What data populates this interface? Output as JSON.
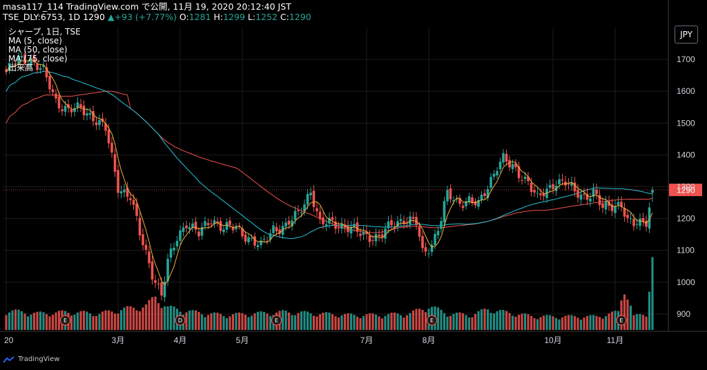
{
  "header": {
    "line1": "masa117_114 TradingView.com で公開, 11月 19, 2020 20:12:40 JST",
    "symbol": "TSE_DLY:6753, 1D",
    "last": "1290",
    "change": "+93 (+7.77%)",
    "o_label": "O:",
    "o": "1281",
    "h_label": "H:",
    "h": "1299",
    "l_label": "L:",
    "l": "1252",
    "c_label": "C:",
    "c": "1290"
  },
  "legend": {
    "title": "シャープ, 1日, TSE",
    "ma5": "MA (5, close)",
    "ma50": "MA (50, close)",
    "ma75": "MA (75, close)",
    "volume": "出来高"
  },
  "currency_button": "JPY",
  "footer": {
    "brand": "TradingView"
  },
  "colors": {
    "up": "#26a69a",
    "down": "#ef5350",
    "ma5": "#f2b33d",
    "ma50": "#26c6da",
    "ma75": "#ef5350",
    "grid": "#1c1c1c",
    "price_label_bg": "#ef5350"
  },
  "chart_data": {
    "type": "candlestick",
    "title": "シャープ, 1日, TSE",
    "ylim": [
      850,
      1800
    ],
    "y_ticks": [
      900,
      1000,
      1100,
      1200,
      1300,
      1400,
      1500,
      1600,
      1700
    ],
    "last_price": 1290,
    "x_labels": [
      "20",
      "3月",
      "4月",
      "5月",
      "7月",
      "8月",
      "10月",
      "11月"
    ],
    "x_label_positions_days": [
      0,
      36,
      56,
      76,
      116,
      136,
      176,
      196
    ],
    "grid": true,
    "legend_placement": "top-left",
    "close_anchors": [
      [
        0,
        1660
      ],
      [
        4,
        1700
      ],
      [
        8,
        1700
      ],
      [
        12,
        1660
      ],
      [
        16,
        1570
      ],
      [
        20,
        1540
      ],
      [
        24,
        1545
      ],
      [
        28,
        1520
      ],
      [
        32,
        1480
      ],
      [
        36,
        1300
      ],
      [
        40,
        1270
      ],
      [
        43,
        1150
      ],
      [
        47,
        1030
      ],
      [
        50,
        960
      ],
      [
        52,
        1060
      ],
      [
        55,
        1140
      ],
      [
        58,
        1190
      ],
      [
        62,
        1150
      ],
      [
        66,
        1200
      ],
      [
        70,
        1170
      ],
      [
        74,
        1170
      ],
      [
        78,
        1140
      ],
      [
        82,
        1110
      ],
      [
        86,
        1170
      ],
      [
        90,
        1175
      ],
      [
        94,
        1215
      ],
      [
        98,
        1290
      ],
      [
        101,
        1180
      ],
      [
        105,
        1190
      ],
      [
        110,
        1170
      ],
      [
        115,
        1150
      ],
      [
        120,
        1140
      ],
      [
        124,
        1180
      ],
      [
        128,
        1200
      ],
      [
        132,
        1185
      ],
      [
        134,
        1090
      ],
      [
        137,
        1120
      ],
      [
        140,
        1200
      ],
      [
        142,
        1275
      ],
      [
        145,
        1250
      ],
      [
        149,
        1260
      ],
      [
        152,
        1240
      ],
      [
        155,
        1300
      ],
      [
        158,
        1370
      ],
      [
        160,
        1390
      ],
      [
        162,
        1365
      ],
      [
        165,
        1340
      ],
      [
        168,
        1320
      ],
      [
        171,
        1260
      ],
      [
        174,
        1285
      ],
      [
        177,
        1320
      ],
      [
        180,
        1315
      ],
      [
        183,
        1280
      ],
      [
        186,
        1270
      ],
      [
        189,
        1285
      ],
      [
        192,
        1230
      ],
      [
        195,
        1240
      ],
      [
        198,
        1250
      ],
      [
        200,
        1190
      ],
      [
        202,
        1180
      ],
      [
        204,
        1185
      ],
      [
        206,
        1195
      ],
      [
        208,
        1290
      ]
    ],
    "volume_anchors": [
      [
        0,
        65
      ],
      [
        10,
        55
      ],
      [
        20,
        60
      ],
      [
        30,
        55
      ],
      [
        38,
        70
      ],
      [
        45,
        80
      ],
      [
        48,
        110
      ],
      [
        52,
        75
      ],
      [
        60,
        60
      ],
      [
        70,
        50
      ],
      [
        80,
        55
      ],
      [
        90,
        60
      ],
      [
        100,
        55
      ],
      [
        110,
        50
      ],
      [
        120,
        50
      ],
      [
        130,
        55
      ],
      [
        136,
        80
      ],
      [
        142,
        55
      ],
      [
        150,
        50
      ],
      [
        155,
        70
      ],
      [
        160,
        60
      ],
      [
        170,
        45
      ],
      [
        180,
        45
      ],
      [
        190,
        45
      ],
      [
        197,
        60
      ],
      [
        199,
        150
      ],
      [
        202,
        45
      ],
      [
        206,
        55
      ],
      [
        208,
        240
      ]
    ],
    "volume_axis_max": 1000,
    "earnings_markers": [
      {
        "day": 19,
        "label": "E"
      },
      {
        "day": 56,
        "label": "D"
      },
      {
        "day": 87,
        "label": "E"
      },
      {
        "day": 137,
        "label": "E"
      },
      {
        "day": 198,
        "label": "E"
      }
    ],
    "series": [
      {
        "name": "MA (5, close)",
        "period": 5
      },
      {
        "name": "MA (50, close)",
        "period": 50
      },
      {
        "name": "MA (75, close)",
        "period": 75
      }
    ]
  }
}
